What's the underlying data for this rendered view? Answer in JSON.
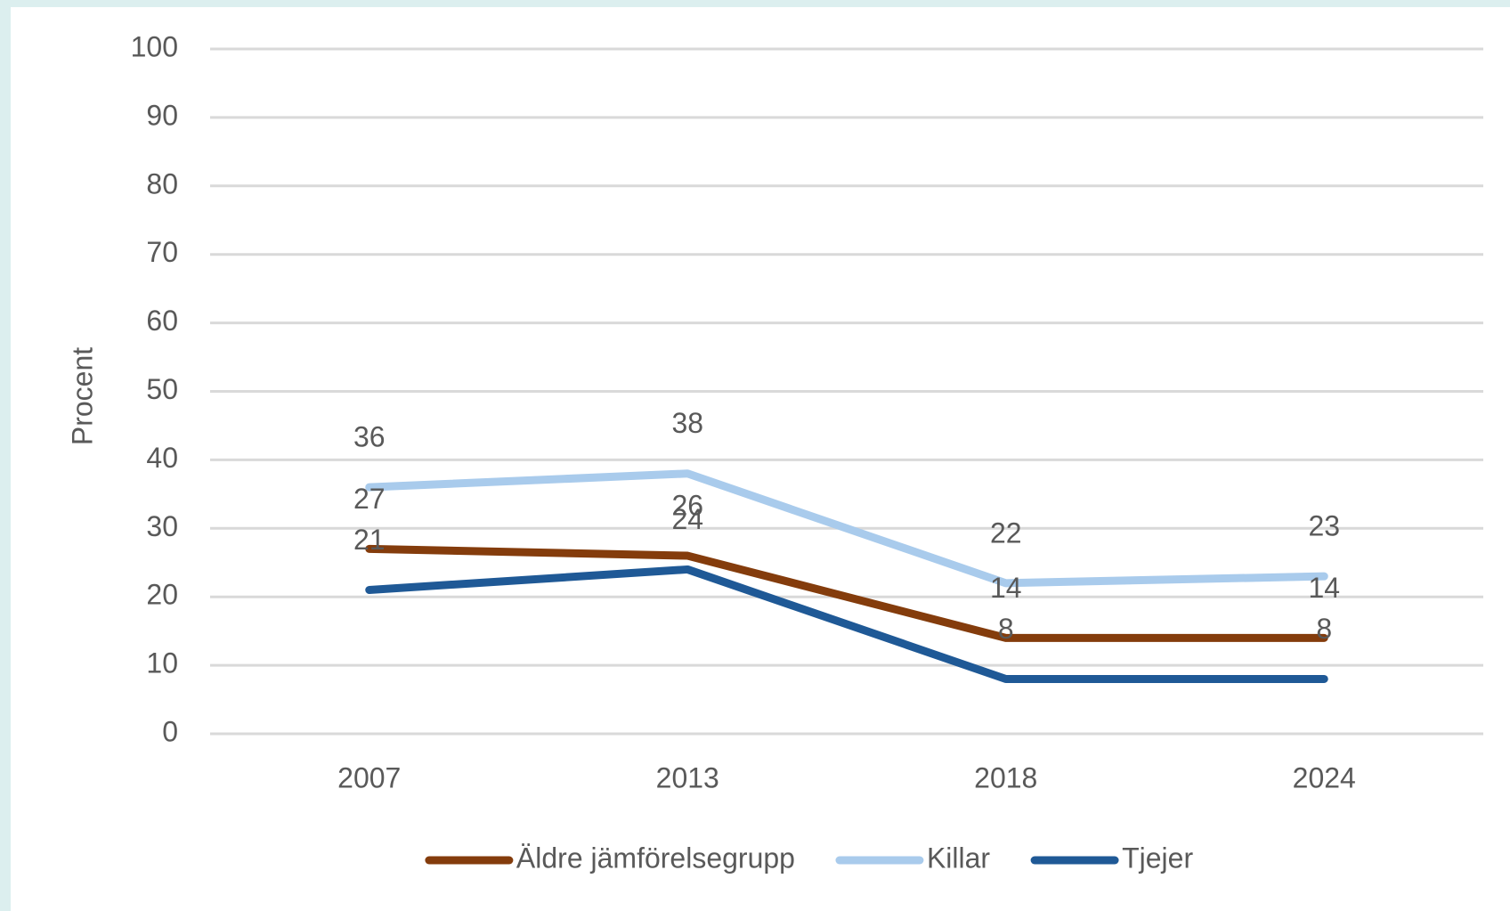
{
  "chart_data": {
    "type": "line",
    "y_label": "Procent",
    "categories": [
      "2007",
      "2013",
      "2018",
      "2024"
    ],
    "series": [
      {
        "name": "Äldre jämförelsegrupp",
        "color": "#843c0c",
        "values": [
          27,
          26,
          14,
          14
        ]
      },
      {
        "name": "Killar",
        "color": "#a9cbec",
        "values": [
          36,
          38,
          22,
          23
        ]
      },
      {
        "name": "Tjejer",
        "color": "#1f5996",
        "values": [
          21,
          24,
          8,
          8
        ]
      }
    ],
    "ylim": [
      0,
      100
    ],
    "yticks": [
      0,
      10,
      20,
      30,
      40,
      50,
      60,
      70,
      80,
      90,
      100
    ],
    "grid": true,
    "data_labels": true,
    "legend": "bottom"
  }
}
